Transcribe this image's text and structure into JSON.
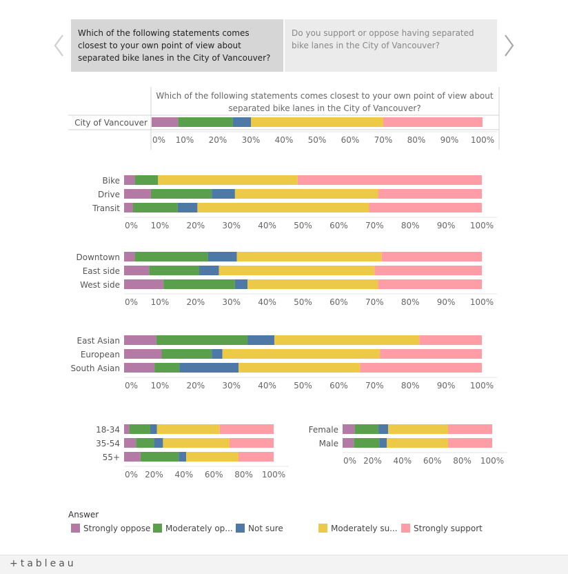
{
  "tabs": [
    {
      "label": "Which of the following statements comes closest to your own point of view about separated bike lanes in the City of Vancouver?",
      "active": true
    },
    {
      "label": "Do you support or oppose having separated bike lanes in the City of Vancouver?",
      "active": false
    }
  ],
  "footer": {
    "brand": "+tableau"
  },
  "chart_data": {
    "type": "bar",
    "orientation": "horizontal-stacked-100",
    "title": "Which of the following statements comes closest to your own point of view about separated bike lanes in the City of Vancouver?",
    "legend": {
      "title": "Answer",
      "position": "bottom",
      "items": [
        {
          "name": "Strongly oppose",
          "label": "Strongly oppose",
          "color": "#b27aa5"
        },
        {
          "name": "Moderately oppose",
          "label": "Moderately op...",
          "color": "#5a9f4c"
        },
        {
          "name": "Not sure",
          "label": "Not sure",
          "color": "#4e79a7"
        },
        {
          "name": "Moderately support",
          "label": "Moderately su...",
          "color": "#edc948"
        },
        {
          "name": "Strongly support",
          "label": "Strongly support",
          "color": "#ff9da7"
        }
      ]
    },
    "panels": [
      {
        "id": "city",
        "categories": [
          "City of Vancouver"
        ],
        "values": [
          [
            8,
            16.5,
            5.5,
            40,
            30
          ]
        ],
        "ticks": [
          "0%",
          "10%",
          "20%",
          "30%",
          "40%",
          "50%",
          "60%",
          "70%",
          "80%",
          "90%",
          "100%"
        ]
      },
      {
        "id": "mode",
        "categories": [
          "Bike",
          "Drive",
          "Transit"
        ],
        "values": [
          [
            3,
            6.5,
            0,
            39,
            51.5
          ],
          [
            7.5,
            17,
            6.5,
            40,
            29
          ],
          [
            2.5,
            12.5,
            5.5,
            48,
            31.5
          ]
        ],
        "ticks": [
          "0%",
          "10%",
          "20%",
          "30%",
          "40%",
          "50%",
          "60%",
          "70%",
          "80%",
          "90%",
          "100%"
        ]
      },
      {
        "id": "area",
        "categories": [
          "Downtown",
          "East side",
          "West side"
        ],
        "values": [
          [
            3,
            20.5,
            8,
            40.5,
            28
          ],
          [
            7,
            14,
            5.5,
            43.5,
            30
          ],
          [
            11,
            20,
            3.5,
            36.5,
            29
          ]
        ],
        "ticks": [
          "0%",
          "10%",
          "20%",
          "30%",
          "40%",
          "50%",
          "60%",
          "70%",
          "80%",
          "90%",
          "100%"
        ]
      },
      {
        "id": "ethnicity",
        "categories": [
          "East Asian",
          "European",
          "South Asian"
        ],
        "values": [
          [
            9,
            25.5,
            7.5,
            40.5,
            17.5
          ],
          [
            10.5,
            14,
            3,
            44,
            28.5
          ],
          [
            8.5,
            7,
            16.5,
            34,
            34
          ]
        ],
        "ticks": [
          "0%",
          "10%",
          "20%",
          "30%",
          "40%",
          "50%",
          "60%",
          "70%",
          "80%",
          "90%",
          "100%"
        ]
      },
      {
        "id": "age",
        "categories": [
          "18-34",
          "35-54",
          "55+"
        ],
        "values": [
          [
            3.5,
            14,
            4.5,
            42,
            36
          ],
          [
            8,
            12,
            6,
            44.5,
            29.5
          ],
          [
            11,
            25.5,
            5,
            35,
            23.5
          ]
        ],
        "ticks": [
          "0%",
          "20%",
          "40%",
          "60%",
          "80%",
          "100%"
        ]
      },
      {
        "id": "gender",
        "categories": [
          "Female",
          "Male"
        ],
        "values": [
          [
            8,
            16,
            6.5,
            40,
            29.5
          ],
          [
            7.5,
            17,
            5,
            41,
            29.5
          ]
        ],
        "ticks": [
          "0%",
          "20%",
          "40%",
          "60%",
          "80%",
          "100%"
        ]
      }
    ],
    "xlim": [
      0,
      100
    ]
  }
}
